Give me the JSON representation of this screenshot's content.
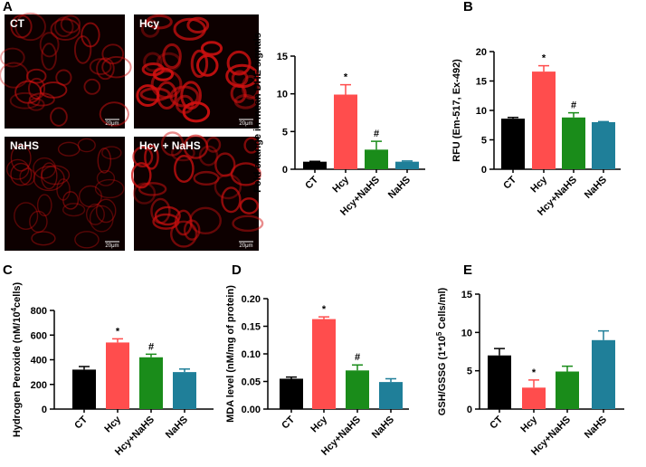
{
  "micrographs": [
    {
      "label": "CT",
      "scale_bar": "20μm"
    },
    {
      "label": "Hcy",
      "scale_bar": "20μm"
    },
    {
      "label": "NaHS",
      "scale_bar": "20μm"
    },
    {
      "label": "Hcy + NaHS",
      "scale_bar": "20μm"
    }
  ],
  "chart_data": [
    {
      "type": "bar",
      "panel": "A",
      "ylabel": [
        "Fold change in mean DHE signals"
      ],
      "categories": [
        "CT",
        "Hcy",
        "Hcy+NaHS",
        "NaHS"
      ],
      "values": [
        1.0,
        9.9,
        2.6,
        1.0
      ],
      "errors": [
        0.05,
        1.3,
        1.1,
        0.1
      ],
      "markers": [
        null,
        "*",
        "#",
        null
      ],
      "colors": [
        "#000000",
        "#ff4d4d",
        "#1a8c1a",
        "#1f7f99"
      ],
      "ylim": [
        0,
        15
      ],
      "yticks": [
        0,
        5,
        10,
        15
      ]
    },
    {
      "type": "bar",
      "panel": "B",
      "ylabel": [
        "RFU (Em-517, Ex-492)"
      ],
      "categories": [
        "CT",
        "Hcy",
        "Hcy+NaHS",
        "NaHS"
      ],
      "values": [
        8.6,
        16.6,
        8.8,
        8.0
      ],
      "errors": [
        0.2,
        1.0,
        0.8,
        0.1
      ],
      "markers": [
        null,
        "*",
        "#",
        null
      ],
      "colors": [
        "#000000",
        "#ff4d4d",
        "#1a8c1a",
        "#1f7f99"
      ],
      "ylim": [
        0,
        20
      ],
      "yticks": [
        0,
        5,
        10,
        15,
        20
      ]
    },
    {
      "type": "bar",
      "panel": "C",
      "ylabel": [
        "Hydrogen Peroxide (nM/10",
        "4",
        "cells)"
      ],
      "categories": [
        "CT",
        "Hcy",
        "Hcy+NaHS",
        "NaHS"
      ],
      "values": [
        320,
        540,
        420,
        300
      ],
      "errors": [
        25,
        30,
        25,
        25
      ],
      "markers": [
        null,
        "*",
        "#",
        null
      ],
      "colors": [
        "#000000",
        "#ff4d4d",
        "#1a8c1a",
        "#1f7f99"
      ],
      "ylim": [
        0,
        800
      ],
      "yticks": [
        0,
        200,
        400,
        600,
        800
      ]
    },
    {
      "type": "bar",
      "panel": "D",
      "ylabel": [
        "MDA level (nM/mg of protein)"
      ],
      "categories": [
        "CT",
        "Hcy",
        "Hcy+NaHS",
        "NaHS"
      ],
      "values": [
        0.055,
        0.163,
        0.07,
        0.049
      ],
      "errors": [
        0.003,
        0.004,
        0.01,
        0.006
      ],
      "markers": [
        null,
        "*",
        "#",
        null
      ],
      "colors": [
        "#000000",
        "#ff4d4d",
        "#1a8c1a",
        "#1f7f99"
      ],
      "ylim": [
        0,
        0.2
      ],
      "yticks": [
        {
          "value": 0,
          "label": "0.00"
        },
        0.05,
        {
          "value": 0.1,
          "label": "0.10"
        },
        0.15,
        {
          "value": 0.2,
          "label": "0.20"
        }
      ]
    },
    {
      "type": "bar",
      "panel": "E",
      "ylabel": [
        "GSH/GSSG (1*10",
        "5",
        " Cells/ml)"
      ],
      "categories": [
        "CT",
        "Hcy",
        "Hcy+NaHS",
        "NaHS"
      ],
      "values": [
        7.0,
        2.8,
        4.9,
        9.0
      ],
      "errors": [
        0.9,
        1.0,
        0.7,
        1.2
      ],
      "markers": [
        null,
        "*",
        null,
        null
      ],
      "colors": [
        "#000000",
        "#ff4d4d",
        "#1a8c1a",
        "#1f7f99"
      ],
      "ylim": [
        0,
        15
      ],
      "yticks": [
        0,
        5,
        10,
        15
      ]
    }
  ]
}
